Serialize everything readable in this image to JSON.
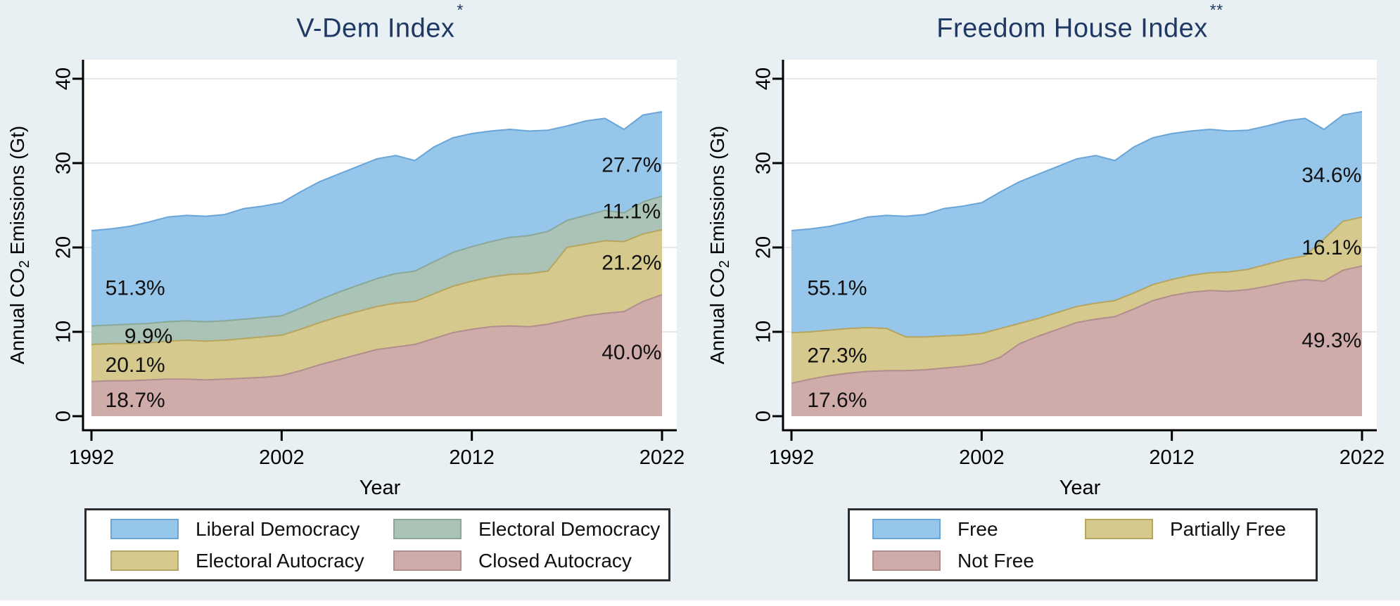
{
  "figure": {
    "background": "#e8f0f3",
    "title_color": "#1f3864",
    "grid_color": "#e4e9ec",
    "axis_color": "#000000",
    "plot_background": "#ffffff"
  },
  "chart_data": [
    {
      "type": "area",
      "stacked": true,
      "title": "V-Dem Index",
      "title_note": "*",
      "xlabel": "Year",
      "ylabel": {
        "pre": "Annual CO",
        "sub": "2",
        "post": " Emissions (Gt)"
      },
      "xlim": [
        1992,
        2022
      ],
      "ylim": [
        0,
        40
      ],
      "x_ticks": [
        1992,
        2002,
        2012,
        2022
      ],
      "y_ticks": [
        0,
        10,
        20,
        30,
        40
      ],
      "grid": "horizontal",
      "legend_position": "below",
      "x": [
        1992,
        1993,
        1994,
        1995,
        1996,
        1997,
        1998,
        1999,
        2000,
        2001,
        2002,
        2003,
        2004,
        2005,
        2006,
        2007,
        2008,
        2009,
        2010,
        2011,
        2012,
        2013,
        2014,
        2015,
        2016,
        2017,
        2018,
        2019,
        2020,
        2021,
        2022
      ],
      "series": [
        {
          "name": "Closed Autocracy",
          "color": "#cfabaa",
          "edge": "#b18e8d",
          "values": [
            4.1,
            4.2,
            4.2,
            4.3,
            4.4,
            4.4,
            4.3,
            4.4,
            4.5,
            4.6,
            4.8,
            5.4,
            6.1,
            6.7,
            7.3,
            7.9,
            8.2,
            8.5,
            9.2,
            9.9,
            10.3,
            10.6,
            10.7,
            10.6,
            10.9,
            11.4,
            11.9,
            12.2,
            12.4,
            13.6,
            14.4
          ]
        },
        {
          "name": "Electoral Autocracy",
          "color": "#d6c98e",
          "edge": "#b5a55f",
          "values": [
            4.4,
            4.4,
            4.4,
            4.4,
            4.5,
            4.6,
            4.6,
            4.6,
            4.7,
            4.8,
            4.8,
            4.9,
            5.0,
            5.1,
            5.1,
            5.1,
            5.2,
            5.1,
            5.3,
            5.5,
            5.7,
            5.9,
            6.1,
            6.3,
            6.3,
            8.6,
            8.5,
            8.6,
            8.3,
            8.0,
            7.7
          ]
        },
        {
          "name": "Electoral Democracy",
          "color": "#abc2b6",
          "edge": "#8aa89a",
          "values": [
            2.2,
            2.2,
            2.3,
            2.3,
            2.3,
            2.3,
            2.3,
            2.3,
            2.3,
            2.3,
            2.3,
            2.5,
            2.7,
            2.9,
            3.1,
            3.3,
            3.5,
            3.6,
            3.8,
            4.0,
            4.1,
            4.2,
            4.4,
            4.5,
            4.7,
            3.2,
            3.4,
            3.6,
            3.4,
            3.8,
            4.0
          ]
        },
        {
          "name": "Liberal Democracy",
          "color": "#96c6e9",
          "edge": "#69a5d8",
          "values": [
            11.3,
            11.4,
            11.6,
            12.0,
            12.4,
            12.5,
            12.5,
            12.6,
            13.1,
            13.2,
            13.4,
            13.8,
            14.0,
            14.0,
            14.1,
            14.2,
            14.0,
            13.1,
            13.6,
            13.6,
            13.4,
            13.1,
            12.8,
            12.4,
            12.0,
            11.2,
            11.2,
            10.9,
            9.9,
            10.3,
            10.0
          ]
        }
      ],
      "annotations": [
        {
          "text": "51.3%",
          "x": 1994.3,
          "y": 15.2
        },
        {
          "text": "9.9%",
          "x": 1995.0,
          "y": 9.5
        },
        {
          "text": "20.1%",
          "x": 1994.3,
          "y": 6.1
        },
        {
          "text": "18.7%",
          "x": 1994.3,
          "y": 1.9
        },
        {
          "text": "27.7%",
          "x": 2020.4,
          "y": 29.8
        },
        {
          "text": "11.1%",
          "x": 2020.4,
          "y": 24.3
        },
        {
          "text": "21.2%",
          "x": 2020.4,
          "y": 18.2
        },
        {
          "text": "40.0%",
          "x": 2020.4,
          "y": 7.6
        }
      ],
      "legend": {
        "items": [
          {
            "label": "Liberal Democracy",
            "color": "#96c6e9",
            "edge": "#69a5d8"
          },
          {
            "label": "Electoral Democracy",
            "color": "#abc2b6",
            "edge": "#8aa89a"
          },
          {
            "label": "Electoral Autocracy",
            "color": "#d6c98e",
            "edge": "#b5a55f"
          },
          {
            "label": "Closed Autocracy",
            "color": "#cfabaa",
            "edge": "#b18e8d"
          }
        ]
      }
    },
    {
      "type": "area",
      "stacked": true,
      "title": "Freedom House Index",
      "title_note": "**",
      "xlabel": "Year",
      "ylabel": {
        "pre": "Annual CO",
        "sub": "2",
        "post": " Emissions (Gt)"
      },
      "xlim": [
        1992,
        2022
      ],
      "ylim": [
        0,
        40
      ],
      "x_ticks": [
        1992,
        2002,
        2012,
        2022
      ],
      "y_ticks": [
        0,
        10,
        20,
        30,
        40
      ],
      "grid": "horizontal",
      "legend_position": "below",
      "x": [
        1992,
        1993,
        1994,
        1995,
        1996,
        1997,
        1998,
        1999,
        2000,
        2001,
        2002,
        2003,
        2004,
        2005,
        2006,
        2007,
        2008,
        2009,
        2010,
        2011,
        2012,
        2013,
        2014,
        2015,
        2016,
        2017,
        2018,
        2019,
        2020,
        2021,
        2022
      ],
      "series": [
        {
          "name": "Not Free",
          "color": "#cfabaa",
          "edge": "#b18e8d",
          "values": [
            3.9,
            4.4,
            4.8,
            5.1,
            5.3,
            5.4,
            5.4,
            5.5,
            5.7,
            5.9,
            6.2,
            7.0,
            8.6,
            9.5,
            10.3,
            11.1,
            11.5,
            11.8,
            12.7,
            13.7,
            14.3,
            14.7,
            14.9,
            14.8,
            15.0,
            15.4,
            15.9,
            16.2,
            16.0,
            17.3,
            17.8
          ]
        },
        {
          "name": "Partially Free",
          "color": "#d6c98e",
          "edge": "#b5a55f",
          "values": [
            6.0,
            5.6,
            5.4,
            5.3,
            5.2,
            5.0,
            4.0,
            3.9,
            3.8,
            3.7,
            3.6,
            3.4,
            2.4,
            2.1,
            2.0,
            1.9,
            1.9,
            1.9,
            1.9,
            1.9,
            1.9,
            2.0,
            2.1,
            2.3,
            2.4,
            2.6,
            2.7,
            2.8,
            5.0,
            5.8,
            5.8
          ]
        },
        {
          "name": "Free",
          "color": "#96c6e9",
          "edge": "#69a5d8",
          "values": [
            12.1,
            12.2,
            12.3,
            12.6,
            13.1,
            13.4,
            14.3,
            14.5,
            15.1,
            15.3,
            15.5,
            16.2,
            16.8,
            17.1,
            17.3,
            17.5,
            17.5,
            16.6,
            17.3,
            17.4,
            17.3,
            17.1,
            17.0,
            16.7,
            16.5,
            16.4,
            16.4,
            16.3,
            13.0,
            12.6,
            12.5
          ]
        }
      ],
      "annotations": [
        {
          "text": "55.1%",
          "x": 1994.4,
          "y": 15.2
        },
        {
          "text": "27.3%",
          "x": 1994.4,
          "y": 7.2
        },
        {
          "text": "17.6%",
          "x": 1994.4,
          "y": 1.9
        },
        {
          "text": "34.6%",
          "x": 2020.4,
          "y": 28.6
        },
        {
          "text": "16.1%",
          "x": 2020.4,
          "y": 20.0
        },
        {
          "text": "49.3%",
          "x": 2020.4,
          "y": 9.0
        }
      ],
      "legend": {
        "items": [
          {
            "label": "Free",
            "color": "#96c6e9",
            "edge": "#69a5d8"
          },
          {
            "label": "Partially Free",
            "color": "#d6c98e",
            "edge": "#b5a55f"
          },
          {
            "label": "Not Free",
            "color": "#cfabaa",
            "edge": "#b18e8d"
          }
        ]
      }
    }
  ]
}
